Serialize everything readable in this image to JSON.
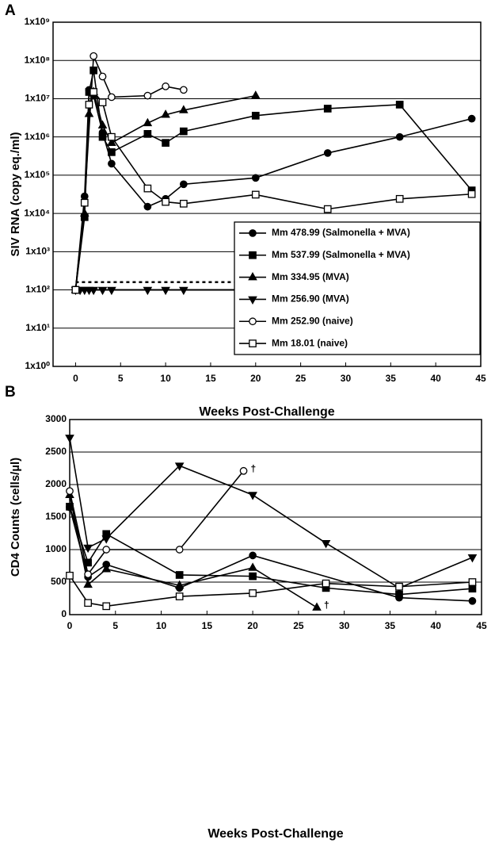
{
  "chart_data": [
    {
      "type": "line",
      "panel_label": "A",
      "y_label": "SIV RNA (copy eq./ml)",
      "x_label": "Weeks Post-Challenge",
      "log_y": true,
      "grid": true,
      "legend": "lower-right",
      "xlim": [
        -2.5,
        45
      ],
      "xticks": [
        0,
        5,
        10,
        15,
        20,
        25,
        30,
        35,
        40,
        45
      ],
      "ylim": [
        1,
        1000000000
      ],
      "yticks": [
        {
          "value": 1,
          "label": "1x10⁰"
        },
        {
          "value": 10,
          "label": "1x10¹"
        },
        {
          "value": 100,
          "label": "1x10²"
        },
        {
          "value": 1000,
          "label": "1x10³"
        },
        {
          "value": 10000,
          "label": "1x10⁴"
        },
        {
          "value": 100000,
          "label": "1x10⁵"
        },
        {
          "value": 1000000,
          "label": "1x10⁶"
        },
        {
          "value": 10000000,
          "label": "1x10⁷"
        },
        {
          "value": 100000000,
          "label": "1x10⁸"
        },
        {
          "value": 1000000000,
          "label": "1x10⁹"
        }
      ],
      "reference_lines": [
        {
          "value": 100,
          "style": "solid"
        },
        {
          "value": 160,
          "style": "dotted"
        }
      ],
      "series": [
        {
          "name": "Mm 478.99 (Salmonella + MVA)",
          "color": "#000000",
          "marker": "circle-filled",
          "x": [
            0,
            1,
            1.5,
            2,
            3,
            4,
            8,
            10,
            12,
            20,
            28,
            36,
            44
          ],
          "values": [
            100,
            28000,
            17000000,
            12000000,
            1300000,
            200000,
            15000,
            24000,
            58000,
            85000,
            380000,
            1000000,
            3000000
          ]
        },
        {
          "name": "Mm 537.99 (Salmonella + MVA)",
          "color": "#000000",
          "marker": "square-filled",
          "x": [
            0,
            1,
            1.5,
            2,
            3,
            4,
            8,
            10,
            12,
            20,
            28,
            36,
            44
          ],
          "values": [
            100,
            8000,
            15000000,
            55000000,
            1000000,
            400000,
            1200000,
            700000,
            1400000,
            3600000,
            5500000,
            7000000,
            40000
          ]
        },
        {
          "name": "Mm 334.95 (MVA)",
          "color": "#000000",
          "marker": "triangle-filled",
          "x": [
            0,
            1,
            1.5,
            2,
            3,
            4,
            8,
            10,
            12,
            20
          ],
          "values": [
            100,
            10000,
            4000000,
            15000000,
            2000000,
            700000,
            2300000,
            3800000,
            5000000,
            12000000
          ]
        },
        {
          "name": "Mm 256.90 (MVA)",
          "color": "#000000",
          "marker": "triangle-down-filled",
          "x": [
            0,
            0.5,
            1,
            1.5,
            2,
            3,
            4,
            8,
            10,
            12
          ],
          "values": [
            100,
            100,
            100,
            100,
            100,
            100,
            100,
            100,
            100,
            100
          ]
        },
        {
          "name": "Mm 252.90 (naive)",
          "color": "#000000",
          "marker": "circle-open",
          "x": [
            0,
            1,
            2,
            3,
            4,
            8,
            10,
            12
          ],
          "values": [
            100,
            20000,
            130000000,
            38000000,
            11000000,
            12000000,
            21000000,
            17000000
          ]
        },
        {
          "name": "Mm 18.01 (naive)",
          "color": "#000000",
          "marker": "square-open",
          "x": [
            0,
            1,
            1.5,
            2,
            3,
            4,
            8,
            10,
            12,
            20,
            28,
            36,
            44
          ],
          "values": [
            100,
            19000,
            7000000,
            15000000,
            8000000,
            1000000,
            45000,
            20000,
            18000,
            31000,
            13000,
            24000,
            32000
          ]
        }
      ]
    },
    {
      "type": "line",
      "panel_label": "B",
      "y_label": "CD4 Counts (cells/µl)",
      "x_label": "Weeks Post-Challenge",
      "grid": true,
      "annotations": [
        "†",
        "†"
      ],
      "xlim": [
        0,
        45
      ],
      "xticks": [
        0,
        5,
        10,
        15,
        20,
        25,
        30,
        35,
        40,
        45
      ],
      "ylim": [
        0,
        3000
      ],
      "yticks": [
        0,
        500,
        1000,
        1500,
        2000,
        2500,
        3000
      ],
      "series": [
        {
          "color": "#000000",
          "marker": "circle-filled",
          "x": [
            0,
            2,
            4,
            12,
            20,
            36,
            44
          ],
          "values": [
            1650,
            580,
            770,
            410,
            910,
            260,
            210
          ]
        },
        {
          "color": "#000000",
          "marker": "square-filled",
          "x": [
            0,
            2,
            4,
            12,
            20,
            28,
            36,
            44
          ],
          "values": [
            1660,
            800,
            1240,
            610,
            590,
            410,
            310,
            400
          ]
        },
        {
          "color": "#000000",
          "marker": "triangle-filled",
          "x": [
            0,
            2,
            4,
            12,
            20,
            27
          ],
          "values": [
            1840,
            460,
            700,
            450,
            720,
            110
          ]
        },
        {
          "color": "#000000",
          "marker": "triangle-down-filled",
          "x": [
            0,
            2,
            4,
            12,
            20,
            28,
            36,
            44
          ],
          "values": [
            2720,
            1030,
            1170,
            2290,
            1840,
            1100,
            410,
            880
          ]
        },
        {
          "color": "#000000",
          "marker": "circle-open",
          "x": [
            0,
            2,
            4,
            12,
            19
          ],
          "values": [
            1900,
            620,
            1000,
            1000,
            2210
          ]
        },
        {
          "color": "#000000",
          "marker": "square-open",
          "x": [
            0,
            2,
            4,
            12,
            20,
            28,
            36,
            44
          ],
          "values": [
            600,
            180,
            130,
            280,
            330,
            480,
            430,
            500
          ]
        }
      ]
    }
  ]
}
